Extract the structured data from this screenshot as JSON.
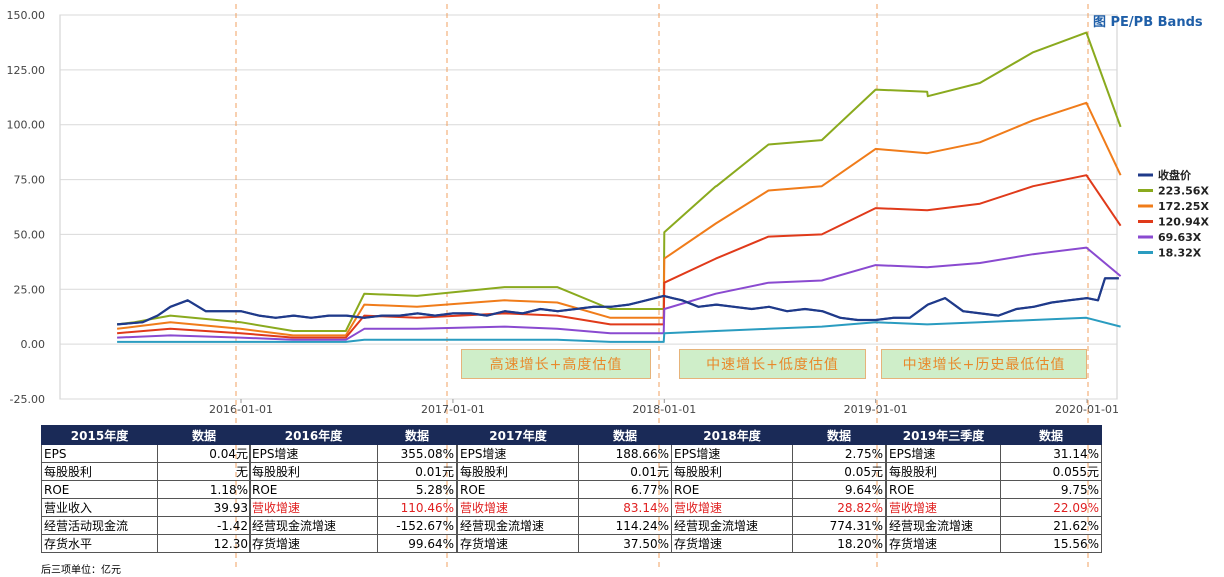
{
  "title": "图 PE/PB Bands",
  "footnote": "后三项单位：亿元",
  "annotations": [
    "高速增长+高度估值",
    "中速增长+低度估值",
    "中速增长+历史最低估值"
  ],
  "chart_data": {
    "type": "line",
    "y_ticks": [
      "150.00",
      "125.00",
      "100.00",
      "75.00",
      "50.00",
      "25.00",
      "0.00",
      "-25.00"
    ],
    "ylim": [
      -25,
      150
    ],
    "x_ticks": [
      "2016-01-01",
      "2017-01-01",
      "2018-01-01",
      "2019-01-01",
      "2020-01-01"
    ],
    "grid": true,
    "legend_position": "right",
    "series": [
      {
        "name": "收盘价",
        "color": "#1f3a8a",
        "x": [
          "2015-06-01",
          "2015-07-15",
          "2015-08-10",
          "2015-09-01",
          "2015-10-01",
          "2015-11-01",
          "2015-12-10",
          "2016-01-01",
          "2016-02-01",
          "2016-03-01",
          "2016-04-01",
          "2016-05-01",
          "2016-06-01",
          "2016-07-01",
          "2016-08-01",
          "2016-09-01",
          "2016-10-01",
          "2016-11-01",
          "2016-12-01",
          "2017-01-01",
          "2017-02-01",
          "2017-03-01",
          "2017-04-01",
          "2017-05-01",
          "2017-06-01",
          "2017-07-01",
          "2017-08-01",
          "2017-09-01",
          "2017-10-01",
          "2017-11-01",
          "2017-12-01",
          "2017-12-31",
          "2018-01-15",
          "2018-02-01",
          "2018-03-01",
          "2018-04-01",
          "2018-05-01",
          "2018-06-01",
          "2018-07-01",
          "2018-08-01",
          "2018-09-01",
          "2018-10-01",
          "2018-11-01",
          "2018-12-01",
          "2019-01-01",
          "2019-02-01",
          "2019-03-01",
          "2019-04-01",
          "2019-05-01",
          "2019-06-01",
          "2019-07-01",
          "2019-08-01",
          "2019-09-01",
          "2019-10-01",
          "2019-11-01",
          "2019-12-01",
          "2020-01-01",
          "2020-01-20",
          "2020-02-01",
          "2020-02-25"
        ],
        "y": [
          9,
          10,
          13,
          17,
          20,
          15,
          15,
          15,
          13,
          12,
          13,
          12,
          13,
          13,
          12,
          13,
          13,
          14,
          13,
          14,
          14,
          13,
          15,
          14,
          16,
          15,
          16,
          17,
          17,
          18,
          20,
          22,
          21,
          20,
          17,
          18,
          17,
          16,
          17,
          15,
          16,
          15,
          12,
          11,
          11,
          12,
          12,
          18,
          21,
          15,
          14,
          13,
          16,
          17,
          19,
          20,
          21,
          20,
          30,
          30
        ]
      },
      {
        "name": "223.56X",
        "color": "#8aaa1e",
        "x": [
          "2015-06-01",
          "2015-07-01",
          "2015-09-01",
          "2015-12-31",
          "2016-03-31",
          "2016-06-30",
          "2016-08-01",
          "2016-10-31",
          "2017-03-31",
          "2017-04-01",
          "2017-06-30",
          "2017-09-30",
          "2017-12-31",
          "2018-01-01",
          "2018-03-31",
          "2018-04-01",
          "2018-06-30",
          "2018-09-30",
          "2019-01-01",
          "2019-03-31",
          "2019-04-01",
          "2019-06-30",
          "2019-09-30",
          "2019-12-31",
          "2020-02-28"
        ],
        "y": [
          9,
          10,
          13,
          10,
          6,
          6,
          23,
          22,
          26,
          26,
          26,
          16,
          16,
          51,
          72,
          72,
          91,
          93,
          116,
          115,
          113,
          119,
          133,
          142,
          99
        ]
      },
      {
        "name": "172.25X",
        "color": "#f07c1a",
        "x": [
          "2015-06-01",
          "2015-09-01",
          "2015-12-31",
          "2016-03-31",
          "2016-06-30",
          "2016-08-01",
          "2016-10-31",
          "2017-03-31",
          "2017-06-30",
          "2017-09-30",
          "2017-12-31",
          "2018-01-01",
          "2018-03-31",
          "2018-06-30",
          "2018-09-30",
          "2019-01-01",
          "2019-03-31",
          "2019-06-30",
          "2019-09-30",
          "2019-12-31",
          "2020-02-28"
        ],
        "y": [
          7,
          10,
          7,
          4,
          4,
          18,
          17,
          20,
          19,
          12,
          12,
          39,
          55,
          70,
          72,
          89,
          87,
          92,
          102,
          110,
          77
        ]
      },
      {
        "name": "120.94X",
        "color": "#e03a1a",
        "x": [
          "2015-06-01",
          "2015-09-01",
          "2015-12-31",
          "2016-03-31",
          "2016-06-30",
          "2016-08-01",
          "2016-10-31",
          "2017-03-31",
          "2017-06-30",
          "2017-09-30",
          "2017-12-31",
          "2018-01-01",
          "2018-03-31",
          "2018-06-30",
          "2018-09-30",
          "2019-01-01",
          "2019-03-31",
          "2019-06-30",
          "2019-09-30",
          "2019-12-31",
          "2020-02-28"
        ],
        "y": [
          5,
          7,
          5,
          3,
          3,
          13,
          12,
          14,
          13,
          9,
          9,
          28,
          39,
          49,
          50,
          62,
          61,
          64,
          72,
          77,
          54
        ]
      },
      {
        "name": "69.63X",
        "color": "#8a4ad0",
        "x": [
          "2015-06-01",
          "2015-09-01",
          "2015-12-31",
          "2016-03-31",
          "2016-06-30",
          "2016-08-01",
          "2016-10-31",
          "2017-03-31",
          "2017-06-30",
          "2017-09-30",
          "2017-12-31",
          "2018-01-01",
          "2018-03-31",
          "2018-06-30",
          "2018-09-30",
          "2019-01-01",
          "2019-03-31",
          "2019-06-30",
          "2019-09-30",
          "2019-12-31",
          "2020-02-28"
        ],
        "y": [
          3,
          4,
          3,
          2,
          2,
          7,
          7,
          8,
          7,
          5,
          5,
          16,
          23,
          28,
          29,
          36,
          35,
          37,
          41,
          44,
          31
        ]
      },
      {
        "name": "18.32X",
        "color": "#2a9cc0",
        "x": [
          "2015-06-01",
          "2015-09-01",
          "2015-12-31",
          "2016-03-31",
          "2016-06-30",
          "2016-08-01",
          "2016-10-31",
          "2017-03-31",
          "2017-06-30",
          "2017-09-30",
          "2017-12-31",
          "2018-01-01",
          "2018-03-31",
          "2018-06-30",
          "2018-09-30",
          "2019-01-01",
          "2019-03-31",
          "2019-06-30",
          "2019-09-30",
          "2019-12-31",
          "2020-02-28"
        ],
        "y": [
          1,
          1,
          1,
          1,
          1,
          2,
          2,
          2,
          2,
          1,
          1,
          5,
          6,
          7,
          8,
          10,
          9,
          10,
          11,
          12,
          8
        ]
      }
    ]
  },
  "tables": [
    {
      "header": [
        "2015年度",
        "数据"
      ],
      "rows": [
        {
          "label": "EPS",
          "value": "0.04元",
          "red": false
        },
        {
          "label": "每股股利",
          "value": "无",
          "red": false
        },
        {
          "label": "ROE",
          "value": "1.18%",
          "red": false
        },
        {
          "label": "营业收入",
          "value": "39.93",
          "red": false
        },
        {
          "label": "经营活动现金流",
          "value": "-1.42",
          "red": false
        },
        {
          "label": "存货水平",
          "value": "12.30",
          "red": false
        }
      ]
    },
    {
      "header": [
        "2016年度",
        "数据"
      ],
      "rows": [
        {
          "label": "EPS增速",
          "value": "355.08%",
          "red": false
        },
        {
          "label": "每股股利",
          "value": "0.01元",
          "red": false
        },
        {
          "label": "ROE",
          "value": "5.28%",
          "red": false
        },
        {
          "label": "营收增速",
          "value": "110.46%",
          "red": true
        },
        {
          "label": "经营现金流增速",
          "value": "-152.67%",
          "red": false
        },
        {
          "label": "存货增速",
          "value": "99.64%",
          "red": false
        }
      ]
    },
    {
      "header": [
        "2017年度",
        "数据"
      ],
      "rows": [
        {
          "label": "EPS增速",
          "value": "188.66%",
          "red": false
        },
        {
          "label": "每股股利",
          "value": "0.01元",
          "red": false
        },
        {
          "label": "ROE",
          "value": "6.77%",
          "red": false
        },
        {
          "label": "营收增速",
          "value": "83.14%",
          "red": true
        },
        {
          "label": "经营现金流增速",
          "value": "114.24%",
          "red": false
        },
        {
          "label": "存货增速",
          "value": "37.50%",
          "red": false
        }
      ]
    },
    {
      "header": [
        "2018年度",
        "数据"
      ],
      "rows": [
        {
          "label": "EPS增速",
          "value": "2.75%",
          "red": false
        },
        {
          "label": "每股股利",
          "value": "0.05元",
          "red": false
        },
        {
          "label": "ROE",
          "value": "9.64%",
          "red": false
        },
        {
          "label": "营收增速",
          "value": "28.82%",
          "red": true
        },
        {
          "label": "经营现金流增速",
          "value": "774.31%",
          "red": false
        },
        {
          "label": "存货增速",
          "value": "18.20%",
          "red": false
        }
      ]
    },
    {
      "header": [
        "2019年三季度",
        "数据"
      ],
      "rows": [
        {
          "label": "EPS增速",
          "value": "31.14%",
          "red": false
        },
        {
          "label": "每股股利",
          "value": "0.055元",
          "red": false
        },
        {
          "label": "ROE",
          "value": "9.75%",
          "red": false
        },
        {
          "label": "营收增速",
          "value": "22.09%",
          "red": true
        },
        {
          "label": "经营现金流增速",
          "value": "21.62%",
          "red": false
        },
        {
          "label": "存货增速",
          "value": "15.56%",
          "red": false
        }
      ]
    }
  ]
}
